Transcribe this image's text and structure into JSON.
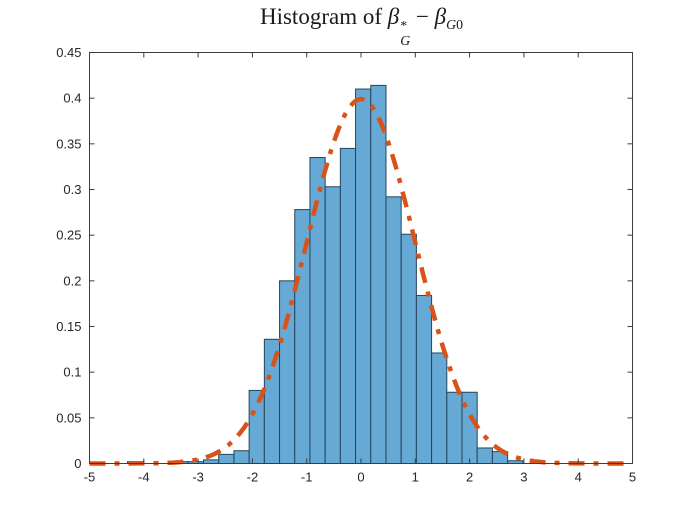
{
  "title": {
    "prefix": "Histogram of ",
    "beta_hat": "β",
    "hat": "ˆ",
    "sup": "*",
    "sub": "G",
    "minus": " − ",
    "beta2": "β",
    "sub2_italic": "G",
    "sub2_regular": "0"
  },
  "chart_data": {
    "type": "bar",
    "subtype": "histogram-pdf",
    "title": "Histogram of beta-hat-star-G minus beta-G0",
    "xlabel": "",
    "ylabel": "",
    "xlim": [
      -5,
      5
    ],
    "ylim": [
      0,
      0.45
    ],
    "x_ticks": [
      -5,
      -4,
      -3,
      -2,
      -1,
      0,
      1,
      2,
      3,
      4,
      5
    ],
    "y_ticks": [
      0,
      0.05,
      0.1,
      0.15,
      0.2,
      0.25,
      0.3,
      0.35,
      0.4,
      0.45
    ],
    "grid": false,
    "legend": null,
    "bin_width": 0.28,
    "bin_left_edges": [
      -4.3,
      -4.02,
      -3.74,
      -3.46,
      -3.18,
      -2.9,
      -2.62,
      -2.34,
      -2.06,
      -1.78,
      -1.5,
      -1.22,
      -0.94,
      -0.66,
      -0.38,
      -0.1,
      0.18,
      0.46,
      0.74,
      1.02,
      1.3,
      1.58,
      1.86,
      2.14,
      2.42,
      2.7
    ],
    "values": [
      0.002,
      0,
      0,
      0.002,
      0.002,
      0.004,
      0.01,
      0.014,
      0.08,
      0.136,
      0.2,
      0.278,
      0.335,
      0.303,
      0.345,
      0.41,
      0.414,
      0.292,
      0.251,
      0.184,
      0.121,
      0.078,
      0.078,
      0.017,
      0.013,
      0.003
    ],
    "overlay_curve": {
      "type": "normal_pdf",
      "mean": 0,
      "sd": 1,
      "peak_value": 0.399,
      "line_style": "dash-dot"
    },
    "colors": {
      "bar_fill": "#66A9D4",
      "bar_edge": "#24455C",
      "curve": "#D95319",
      "axis": "#3C3C3C",
      "text": "#262626"
    }
  }
}
